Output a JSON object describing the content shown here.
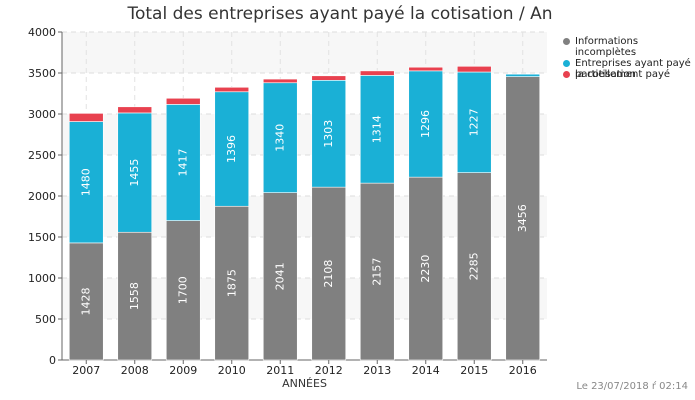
{
  "chart_data": {
    "type": "bar",
    "stacked": true,
    "title": "Total des entreprises ayant payé la cotisation / An",
    "xlabel": "ANNÉES",
    "ylabel": "",
    "ylim": [
      0,
      4000
    ],
    "yticks": [
      0,
      500,
      1000,
      1500,
      2000,
      2500,
      3000,
      3500,
      4000
    ],
    "grid": true,
    "legend_position": "right",
    "categories": [
      "2007",
      "2008",
      "2009",
      "2010",
      "2011",
      "2012",
      "2013",
      "2014",
      "2015",
      "2016"
    ],
    "series": [
      {
        "name": "Informations incomplètes",
        "color": "#808080",
        "values": [
          1428,
          1558,
          1700,
          1875,
          2041,
          2108,
          2157,
          2230,
          2285,
          3456
        ]
      },
      {
        "name": "Entreprises ayant payé la cotisation",
        "color": "#1ab0d6",
        "values": [
          1480,
          1455,
          1417,
          1396,
          1340,
          1303,
          1314,
          1296,
          1227,
          30
        ]
      },
      {
        "name": "partiellement payé",
        "color": "#e8414f",
        "values": [
          100,
          75,
          75,
          55,
          45,
          55,
          55,
          45,
          70,
          0
        ]
      }
    ],
    "data_labels_for_series": [
      0,
      1
    ]
  },
  "footer": {
    "timestamp": "Le 23/07/2018 ŕ 02:14"
  }
}
